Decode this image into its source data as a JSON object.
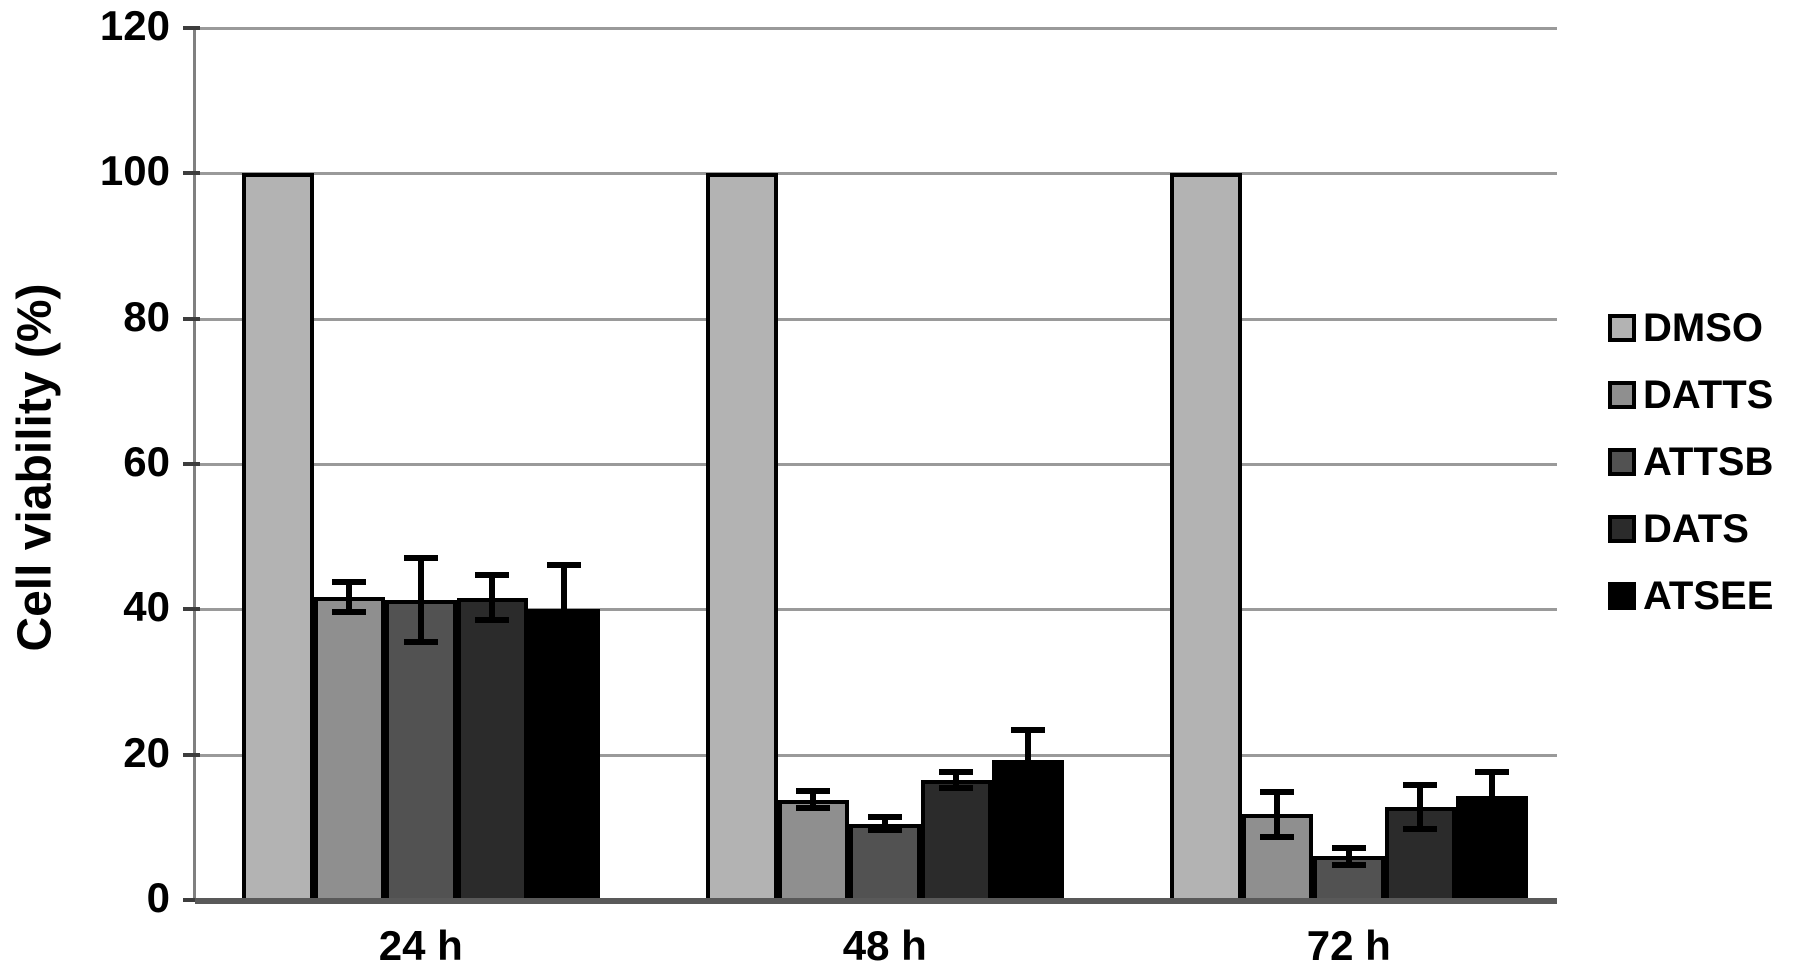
{
  "chart_data": {
    "type": "bar",
    "title": "",
    "xlabel": "",
    "ylabel": "Cell viability (%)",
    "categories": [
      "24 h",
      "48 h",
      "72 h"
    ],
    "series": [
      {
        "name": "DMSO",
        "color": "#b3b3b3",
        "values": [
          100,
          100,
          100
        ],
        "errors": [
          0,
          0,
          0
        ]
      },
      {
        "name": "DATTS",
        "color": "#8f8f8f",
        "values": [
          41.7,
          13.8,
          11.8
        ],
        "errors": [
          2.2,
          1.3,
          3.2
        ]
      },
      {
        "name": "ATTSB",
        "color": "#525252",
        "values": [
          41.3,
          10.5,
          6.0
        ],
        "errors": [
          5.9,
          1.0,
          1.3
        ]
      },
      {
        "name": "DATS",
        "color": "#2b2b2b",
        "values": [
          41.6,
          16.5,
          12.8
        ],
        "errors": [
          3.2,
          1.2,
          3.2
        ]
      },
      {
        "name": "ATSEE",
        "color": "#000000",
        "values": [
          40.0,
          19.3,
          14.3
        ],
        "errors": [
          6.3,
          4.3,
          3.4
        ]
      }
    ],
    "ylim": [
      0,
      120
    ],
    "ytick_step": 20,
    "yticks": [
      "0",
      "20",
      "40",
      "60",
      "80",
      "100",
      "120"
    ],
    "grid": "horizontal",
    "legend_position": "right",
    "error_bars": "black whiskers with caps, upper and lower"
  }
}
